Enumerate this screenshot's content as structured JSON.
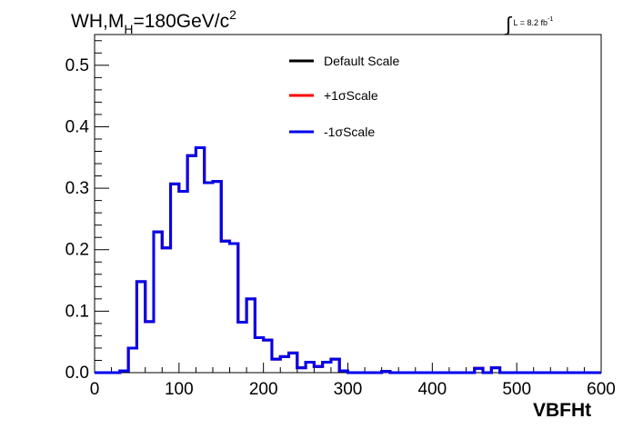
{
  "title": {
    "prefix": "WH,M",
    "subscript": "H",
    "mass": "=180GeV/c",
    "superscript": "2"
  },
  "lumi": {
    "text": "L = 8.2 fb",
    "superscript": "-1"
  },
  "chart_data": {
    "type": "line",
    "style": "step-histogram",
    "xlabel": "VBFHt",
    "ylabel": "",
    "xlim": [
      0,
      600
    ],
    "ylim": [
      0,
      0.55
    ],
    "xticks": [
      0,
      100,
      200,
      300,
      400,
      500,
      600
    ],
    "yticks": [
      0.0,
      0.1,
      0.2,
      0.3,
      0.4,
      0.5
    ],
    "grid": false,
    "legend_position": "top-right",
    "bin_edges": [
      0,
      10,
      20,
      30,
      40,
      50,
      60,
      70,
      80,
      90,
      100,
      110,
      120,
      130,
      140,
      150,
      160,
      170,
      180,
      190,
      200,
      210,
      220,
      230,
      240,
      250,
      260,
      270,
      280,
      290,
      300,
      310,
      320,
      330,
      340,
      350,
      360,
      370,
      380,
      390,
      400,
      410,
      420,
      430,
      440,
      450,
      460,
      470,
      480,
      490,
      500,
      510,
      520,
      530,
      540,
      550,
      560,
      570,
      580,
      590,
      600
    ],
    "series": [
      {
        "name": "Default Scale",
        "color": "#000000",
        "values": [
          0,
          0,
          0,
          0.003,
          0.04,
          0.148,
          0.083,
          0.229,
          0.203,
          0.307,
          0.295,
          0.353,
          0.366,
          0.309,
          0.311,
          0.214,
          0.21,
          0.082,
          0.12,
          0.057,
          0.053,
          0.022,
          0.026,
          0.032,
          0.008,
          0.017,
          0.01,
          0.017,
          0.022,
          0.003,
          0,
          0,
          0,
          0,
          0.002,
          0,
          0,
          0,
          0,
          0,
          0,
          0,
          0,
          0,
          0,
          0.007,
          0,
          0.008,
          0,
          0,
          0,
          0,
          0,
          0,
          0,
          0,
          0,
          0,
          0,
          0
        ]
      },
      {
        "name": "+1σScale",
        "color": "#ff0000",
        "values": [
          0,
          0,
          0,
          0.003,
          0.04,
          0.148,
          0.083,
          0.229,
          0.203,
          0.307,
          0.295,
          0.353,
          0.366,
          0.309,
          0.311,
          0.214,
          0.21,
          0.082,
          0.12,
          0.057,
          0.053,
          0.022,
          0.026,
          0.032,
          0.008,
          0.017,
          0.01,
          0.017,
          0.022,
          0.003,
          0,
          0,
          0,
          0,
          0.002,
          0,
          0,
          0,
          0,
          0,
          0,
          0,
          0,
          0,
          0,
          0.007,
          0,
          0.008,
          0,
          0,
          0,
          0,
          0,
          0,
          0,
          0,
          0,
          0,
          0,
          0
        ]
      },
      {
        "name": "-1σScale",
        "color": "#0000ee",
        "values": [
          0,
          0,
          0,
          0.003,
          0.04,
          0.148,
          0.083,
          0.229,
          0.203,
          0.307,
          0.295,
          0.353,
          0.366,
          0.309,
          0.311,
          0.214,
          0.21,
          0.082,
          0.12,
          0.057,
          0.053,
          0.022,
          0.026,
          0.032,
          0.008,
          0.017,
          0.01,
          0.017,
          0.022,
          0.003,
          0,
          0,
          0,
          0,
          0.002,
          0,
          0,
          0,
          0,
          0,
          0,
          0,
          0,
          0,
          0,
          0.007,
          0,
          0.008,
          0,
          0,
          0,
          0,
          0,
          0,
          0,
          0,
          0,
          0,
          0,
          0
        ]
      }
    ]
  }
}
